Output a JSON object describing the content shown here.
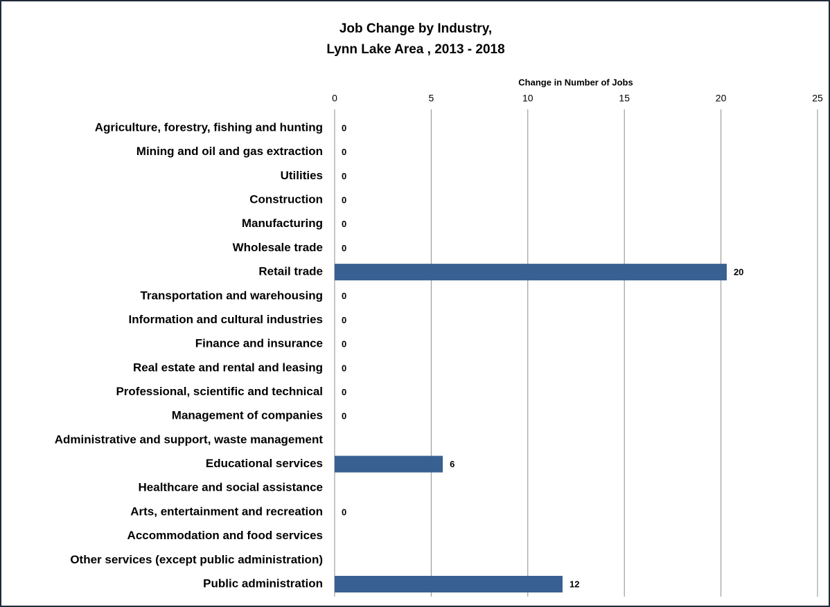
{
  "chart_data": {
    "type": "hbar",
    "title": "Job Change by Industry,",
    "subtitle": "Lynn Lake Area , 2013 - 2018",
    "x_label": "Change in Number of Jobs",
    "categories": [
      "Agriculture, forestry, fishing and hunting",
      "Mining and oil and gas extraction",
      "Utilities",
      "Construction",
      "Manufacturing",
      "Wholesale trade",
      "Retail trade",
      "Transportation and warehousing",
      "Information and cultural industries",
      "Finance and insurance",
      "Real estate and rental and leasing",
      "Professional, scientific and technical",
      "Management of companies",
      "Administrative and support, waste management",
      "Educational services",
      "Healthcare and social assistance",
      "Arts, entertainment and recreation",
      "Accommodation and food services",
      "Other services (except public administration)",
      "Public administration"
    ],
    "values": [
      0,
      0,
      0,
      0,
      0,
      0,
      20.3,
      0,
      0,
      0,
      0,
      0,
      0,
      null,
      5.6,
      null,
      0,
      null,
      null,
      11.8
    ],
    "value_labels": [
      "0",
      "0",
      "0",
      "0",
      "0",
      "0",
      "20",
      "0",
      "0",
      "0",
      "0",
      "0",
      "0",
      null,
      "6",
      null,
      "0",
      null,
      null,
      "12"
    ],
    "color": "#386191",
    "xlim": [
      0,
      25
    ],
    "xticks": [
      0,
      5,
      10,
      15,
      20,
      25
    ],
    "grid": true
  }
}
